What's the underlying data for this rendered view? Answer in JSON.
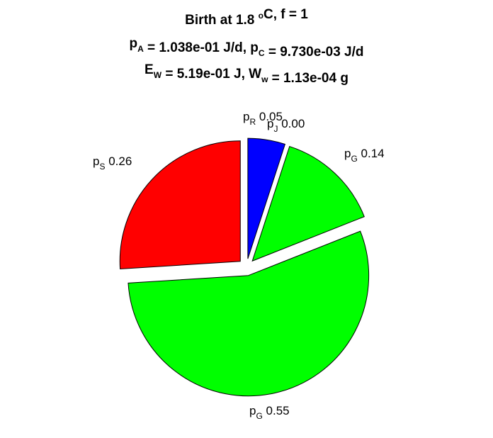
{
  "chart_data": {
    "type": "pie",
    "title_lines": [
      {
        "parts": [
          {
            "t": "Birth at 1.8 "
          },
          {
            "t": "o",
            "sup": true
          },
          {
            "t": "C, f = 1"
          }
        ]
      },
      {
        "parts": [
          {
            "t": "p"
          },
          {
            "t": "A",
            "sub": true
          },
          {
            "t": " = 1.038e-01 J/d, p"
          },
          {
            "t": "C",
            "sub": true
          },
          {
            "t": " = 9.730e-03 J/d"
          }
        ]
      },
      {
        "parts": [
          {
            "t": "E"
          },
          {
            "t": "W",
            "sub": true
          },
          {
            "t": " = 5.19e-01 J, W"
          },
          {
            "t": "w",
            "sub": true
          },
          {
            "t": " = 1.13e-04 g"
          }
        ]
      }
    ],
    "slices": [
      {
        "symbol": "p",
        "sub": "R",
        "value_label": "0.05",
        "fraction": 0.05,
        "color": "#0000ff"
      },
      {
        "symbol": "p",
        "sub": "G",
        "value_label": "0.14",
        "fraction": 0.14,
        "color": "#00ff00"
      },
      {
        "symbol": "p",
        "sub": "G",
        "value_label": "0.55",
        "fraction": 0.55,
        "color": "#00ff00"
      },
      {
        "symbol": "p",
        "sub": "S",
        "value_label": "0.26",
        "fraction": 0.26,
        "color": "#ff0000"
      },
      {
        "symbol": "p",
        "sub": "J",
        "value_label": "0.00",
        "fraction": 0.0,
        "color": "#ffff00"
      }
    ]
  }
}
